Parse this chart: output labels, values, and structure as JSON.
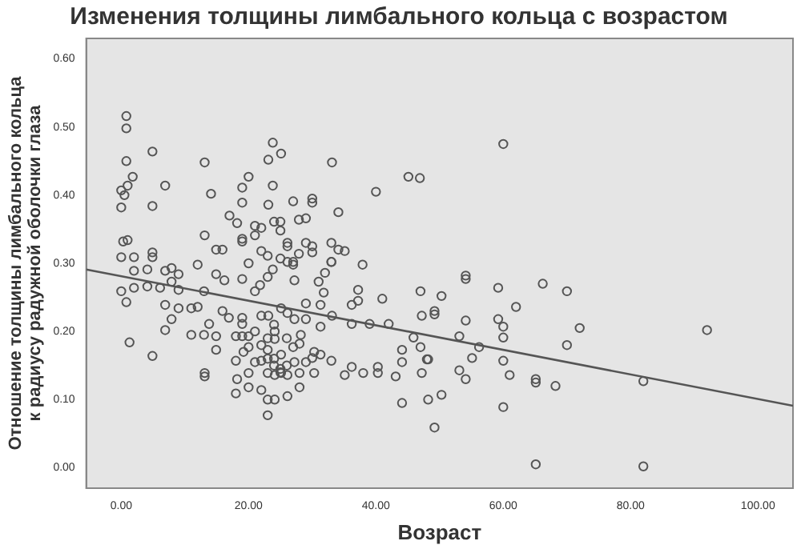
{
  "chart_data": {
    "type": "scatter",
    "title": "Изменения толщины лимбального кольца с возрастом",
    "xlabel": "Возраст",
    "ylabel": "Отношение толщины лимбального кольца к радиусу радужной оболочки глаза",
    "xlim": [
      -5.5,
      105.5
    ],
    "ylim": [
      -0.03,
      0.63
    ],
    "xticks": [
      {
        "value": 0,
        "label": "0.00"
      },
      {
        "value": 20,
        "label": "20.00"
      },
      {
        "value": 40,
        "label": "40.00"
      },
      {
        "value": 60,
        "label": "60.00"
      },
      {
        "value": 80,
        "label": "80.00"
      },
      {
        "value": 100,
        "label": "100.00"
      }
    ],
    "yticks": [
      {
        "value": 0,
        "label": "0.00"
      },
      {
        "value": 0.1,
        "label": "0.10"
      },
      {
        "value": 0.2,
        "label": "0.20"
      },
      {
        "value": 0.3,
        "label": "0.30"
      },
      {
        "value": 0.4,
        "label": "0.40"
      },
      {
        "value": 0.5,
        "label": "0.50"
      },
      {
        "value": 0.6,
        "label": "0.60"
      }
    ],
    "grid": false,
    "legend": false,
    "marker": "circle",
    "series": [
      {
        "type": "scatter",
        "color": "#555555",
        "x": [
          0.8,
          0.8,
          4.9,
          0.8,
          13.1,
          23.8,
          23.1,
          25.1,
          33.1,
          45.1,
          46.9,
          1.8,
          1,
          0,
          0.5,
          6.9,
          14.1,
          19,
          20,
          23.8,
          40,
          0,
          4.9,
          19,
          23.1,
          27,
          30,
          30,
          34.1,
          17,
          18.2,
          21,
          22,
          24,
          25,
          25,
          27.9,
          29,
          21,
          19,
          19,
          13.1,
          14.9,
          15.9,
          26.1,
          26.1,
          29,
          30,
          33,
          34.1,
          35.1,
          0.3,
          1,
          0,
          2,
          4.9,
          4.9,
          12,
          22,
          23,
          25,
          27,
          27.9,
          30,
          33,
          37.9,
          20,
          0,
          0.8,
          2,
          2,
          4.1,
          4.1,
          6.1,
          6.9,
          7.9,
          9,
          9,
          7.9,
          6.9,
          9,
          7.9,
          11,
          12,
          6.9,
          13,
          14.9,
          16.2,
          1.3,
          4.9,
          11,
          13,
          13.8,
          14.9,
          14.9,
          15.9,
          16.9,
          19,
          19,
          18,
          19,
          20,
          21,
          22,
          23.1,
          24.1,
          24.1,
          25.1,
          26.1,
          27.2,
          28.2,
          29,
          31.3,
          33.1,
          36.2,
          39,
          42,
          36.2,
          37.2,
          41,
          37.2,
          47,
          47.2,
          19,
          21,
          21.8,
          23,
          23.8,
          26.1,
          27.2,
          27,
          31,
          32,
          31.8,
          33,
          29,
          31.3,
          19.2,
          18,
          18.2,
          18,
          20,
          20,
          21,
          22,
          22,
          23,
          23,
          23,
          24.1,
          24.1,
          25.1,
          26.1,
          26.1,
          25.1,
          27.2,
          28,
          28,
          29,
          30,
          30.3,
          31.3,
          33,
          35.1,
          36.2,
          38,
          40.3,
          43.1,
          44.1,
          44.1,
          47.2,
          48.2,
          49.2,
          48,
          44.1,
          47,
          45.9,
          40.3,
          13.1,
          13.1,
          20,
          23,
          27,
          28,
          30.3,
          54.1,
          54.1,
          59.2,
          66.2,
          70,
          50.3,
          62,
          49.2,
          49.2,
          54.1,
          59.2,
          60,
          72,
          92,
          53.1,
          60,
          56.2,
          70,
          48.2,
          55.1,
          60,
          53.1,
          54.1,
          61,
          65.1,
          65.1,
          68.2,
          82,
          50.3,
          60,
          65.1,
          82,
          60,
          24,
          25,
          26,
          23,
          24,
          25,
          22,
          23,
          26,
          24
        ],
        "values": [
          0.516,
          0.498,
          0.464,
          0.45,
          0.448,
          0.477,
          0.452,
          0.461,
          0.448,
          0.427,
          0.425,
          0.427,
          0.414,
          0.407,
          0.4,
          0.414,
          0.402,
          0.411,
          0.427,
          0.414,
          0.405,
          0.382,
          0.384,
          0.389,
          0.386,
          0.391,
          0.395,
          0.389,
          0.375,
          0.37,
          0.359,
          0.355,
          0.352,
          0.361,
          0.361,
          0.348,
          0.364,
          0.366,
          0.341,
          0.336,
          0.332,
          0.341,
          0.32,
          0.32,
          0.33,
          0.325,
          0.33,
          0.325,
          0.33,
          0.32,
          0.318,
          0.332,
          0.334,
          0.309,
          0.309,
          0.316,
          0.309,
          0.298,
          0.318,
          0.311,
          0.307,
          0.302,
          0.314,
          0.316,
          0.302,
          0.298,
          0.3,
          0.259,
          0.243,
          0.289,
          0.264,
          0.291,
          0.266,
          0.264,
          0.289,
          0.293,
          0.284,
          0.261,
          0.273,
          0.239,
          0.234,
          0.218,
          0.234,
          0.236,
          0.202,
          0.259,
          0.284,
          0.275,
          0.184,
          0.164,
          0.195,
          0.195,
          0.211,
          0.193,
          0.173,
          0.23,
          0.22,
          0.22,
          0.211,
          0.193,
          0.193,
          0.193,
          0.2,
          0.223,
          0.223,
          0.2,
          0.189,
          0.234,
          0.227,
          0.218,
          0.195,
          0.218,
          0.207,
          0.223,
          0.211,
          0.211,
          0.211,
          0.239,
          0.245,
          0.248,
          0.261,
          0.259,
          0.223,
          0.277,
          0.259,
          0.268,
          0.28,
          0.291,
          0.302,
          0.275,
          0.298,
          0.273,
          0.286,
          0.257,
          0.302,
          0.241,
          0.239,
          0.17,
          0.157,
          0.13,
          0.109,
          0.139,
          0.118,
          0.155,
          0.157,
          0.114,
          0.139,
          0.1,
          0.077,
          0.136,
          0.1,
          0.139,
          0.136,
          0.105,
          0.166,
          0.155,
          0.139,
          0.118,
          0.155,
          0.161,
          0.139,
          0.166,
          0.157,
          0.136,
          0.148,
          0.139,
          0.139,
          0.134,
          0.155,
          0.095,
          0.139,
          0.1,
          0.059,
          0.159,
          0.173,
          0.177,
          0.191,
          0.148,
          0.139,
          0.134,
          0.177,
          0.173,
          0.177,
          0.182,
          0.17,
          0.282,
          0.277,
          0.264,
          0.27,
          0.259,
          0.252,
          0.236,
          0.23,
          0.225,
          0.216,
          0.218,
          0.207,
          0.205,
          0.202,
          0.193,
          0.191,
          0.177,
          0.18,
          0.159,
          0.161,
          0.157,
          0.143,
          0.13,
          0.136,
          0.13,
          0.125,
          0.12,
          0.127,
          0.107,
          0.089,
          0.005,
          0.002,
          0.475,
          0.15,
          0.145,
          0.15,
          0.16,
          0.16,
          0.14,
          0.18,
          0.19,
          0.19,
          0.21
        ]
      },
      {
        "type": "line",
        "color": "#555555",
        "marker": "none",
        "x": [
          -5.5,
          105.5
        ],
        "values": [
          0.291,
          0.091
        ]
      }
    ]
  }
}
